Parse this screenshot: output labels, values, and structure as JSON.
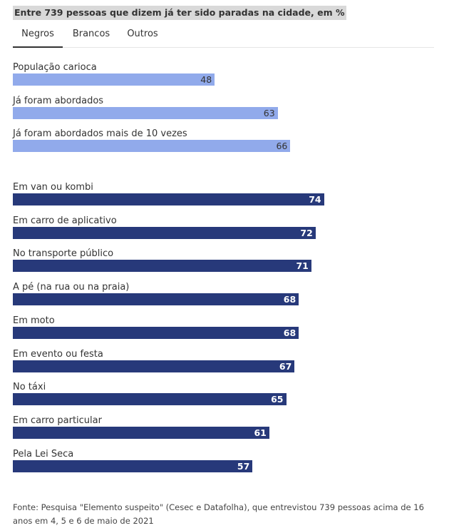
{
  "title": "Entre 739 pessoas que dizem já ter sido paradas na cidade, em %",
  "tabs": [
    {
      "label": "Negros",
      "active": true
    },
    {
      "label": "Brancos",
      "active": false
    },
    {
      "label": "Outros",
      "active": false
    }
  ],
  "colors": {
    "light_bar": "#91aaeb",
    "dark_bar": "#27397a",
    "light_value_text": "#333333",
    "dark_value_text": "#ffffff"
  },
  "chart_data": {
    "type": "bar",
    "orientation": "horizontal",
    "xlim": [
      0,
      100
    ],
    "groups": [
      {
        "style": "light",
        "categories": [
          "População carioca",
          "Já foram abordados",
          "Já foram abordados mais de 10 vezes"
        ],
        "values": [
          48,
          63,
          66
        ]
      },
      {
        "style": "dark",
        "categories": [
          "Em van ou kombi",
          "Em carro de aplicativo",
          "No transporte público",
          "A pé (na rua ou na praia)",
          "Em moto",
          "Em evento ou festa",
          "No táxi",
          "Em carro particular",
          "Pela Lei Seca"
        ],
        "values": [
          74,
          72,
          71,
          68,
          68,
          67,
          65,
          61,
          57
        ]
      }
    ]
  },
  "source": "Fonte: Pesquisa \"Elemento suspeito\" (Cesec e Datafolha), que entrevistou 739 pessoas acima de 16 anos em 4, 5 e 6 de maio de 2021"
}
